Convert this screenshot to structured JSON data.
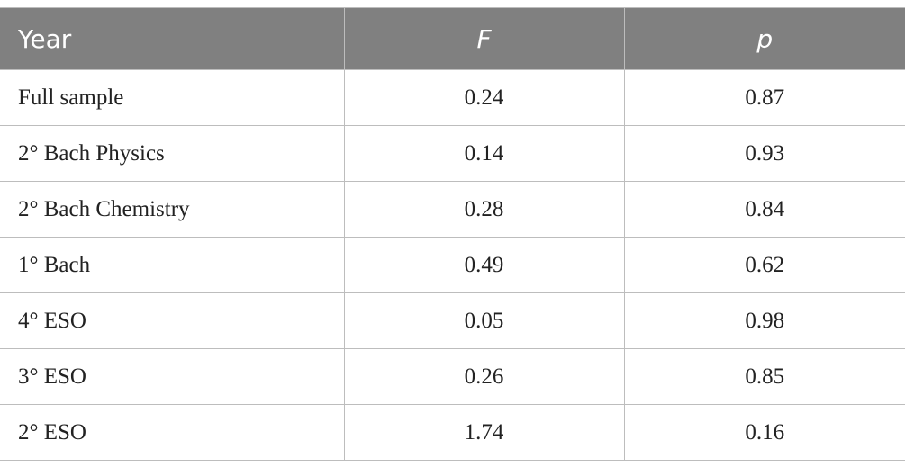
{
  "table": {
    "header": [
      "Year",
      "F",
      "p"
    ],
    "rows": [
      [
        "Full sample",
        "0.24",
        "0.87"
      ],
      [
        "2° Bach Physics",
        "0.14",
        "0.93"
      ],
      [
        "2° Bach Chemistry",
        "0.28",
        "0.84"
      ],
      [
        "1° Bach",
        "0.49",
        "0.62"
      ],
      [
        "4° ESO",
        "0.05",
        "0.98"
      ],
      [
        "3° ESO",
        "0.26",
        "0.85"
      ],
      [
        "2° ESO",
        "1.74",
        "0.16"
      ]
    ]
  }
}
